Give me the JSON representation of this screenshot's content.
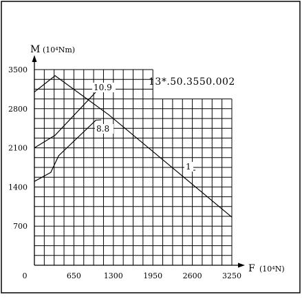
{
  "chart_data": {
    "type": "line",
    "title": "",
    "code_label": "13*.50.3550.002",
    "x_axis": {
      "symbol": "F",
      "unit": "(10⁴N)",
      "range": [
        0,
        3250
      ],
      "ticks": [
        0,
        650,
        1300,
        1950,
        2600,
        3250
      ],
      "tick_labels": [
        "0",
        "650",
        "1300",
        "1950",
        "2600",
        "3250"
      ]
    },
    "y_axis": {
      "symbol": "M",
      "unit": "(10⁴Nm)",
      "range": [
        0,
        3500
      ],
      "ticks": [
        700,
        1400,
        2100,
        2800,
        3500
      ],
      "tick_labels": [
        "700",
        "1400",
        "2100",
        "2800",
        "3500"
      ]
    },
    "grid": {
      "shown": true,
      "x_step": 162.5,
      "y_step": 175,
      "full_height_until_x": 1950,
      "upper_limit_after": 2975
    },
    "series": [
      {
        "name": "10.9",
        "points": [
          [
            0,
            2100
          ],
          [
            341,
            2325
          ],
          [
            1012,
            3100
          ]
        ]
      },
      {
        "name": "8.8",
        "points": [
          [
            0,
            1500
          ],
          [
            270,
            1660
          ],
          [
            400,
            1960
          ],
          [
            1012,
            2595
          ]
        ]
      },
      {
        "name": "1",
        "points": [
          [
            0,
            3100
          ],
          [
            341,
            3390
          ],
          [
            1225,
            2690
          ],
          [
            3250,
            860
          ]
        ]
      }
    ]
  }
}
